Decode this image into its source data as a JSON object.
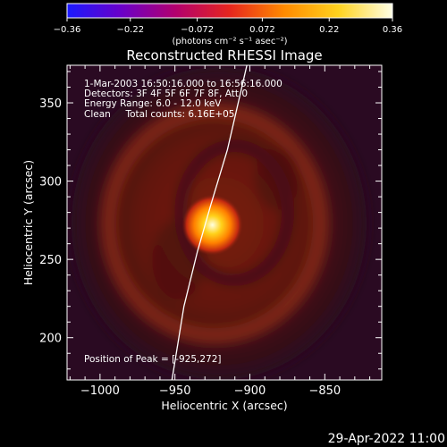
{
  "chart_data": {
    "type": "heatmap",
    "title": "Reconstructed RHESSI Image",
    "xlabel": "Heliocentric X (arcsec)",
    "ylabel": "Heliocentric Y (arcsec)",
    "xlim": [
      -1022,
      -812
    ],
    "ylim": [
      173,
      374
    ],
    "x_ticks": [
      -1000,
      -950,
      -900,
      -850
    ],
    "x_tick_labels": [
      "−1000",
      "−950",
      "−900",
      "−850"
    ],
    "y_ticks": [
      200,
      250,
      300,
      350
    ],
    "y_tick_labels": [
      "200",
      "250",
      "300",
      "350"
    ],
    "grid": false,
    "colorbar": {
      "range": [
        -0.36,
        0.36
      ],
      "ticks": [
        -0.36,
        -0.22,
        -0.072,
        0.072,
        0.22,
        0.36
      ],
      "tick_labels": [
        "−0.36",
        "−0.22",
        "−0.072",
        "0.072",
        "0.22",
        "0.36"
      ],
      "units": "(photons cm⁻² s⁻¹ asec⁻²)",
      "colormap": [
        "#1a1aff",
        "#6a00c8",
        "#b2006e",
        "#e6261e",
        "#ff8a00",
        "#ffd21e",
        "#ffffe6"
      ]
    },
    "annotations": [
      "1-Mar-2003 16:50:16.000 to 16:56:16.000",
      "Detectors: 3F 4F 5F 6F 7F 8F, Att 0",
      "Energy Range: 6.0 - 12.0 keV",
      "Clean     Total counts: 6.16E+05"
    ],
    "peak_label": "Position of Peak = [-925,272]",
    "peak": {
      "x": -925,
      "y": 272
    },
    "limb_curve": [
      [
        -952,
        173
      ],
      [
        -944,
        220
      ],
      [
        -935,
        255
      ],
      [
        -926,
        285
      ],
      [
        -915,
        320
      ],
      [
        -902,
        374
      ]
    ]
  },
  "footer": {
    "timestamp": "29-Apr-2022 11:00"
  }
}
